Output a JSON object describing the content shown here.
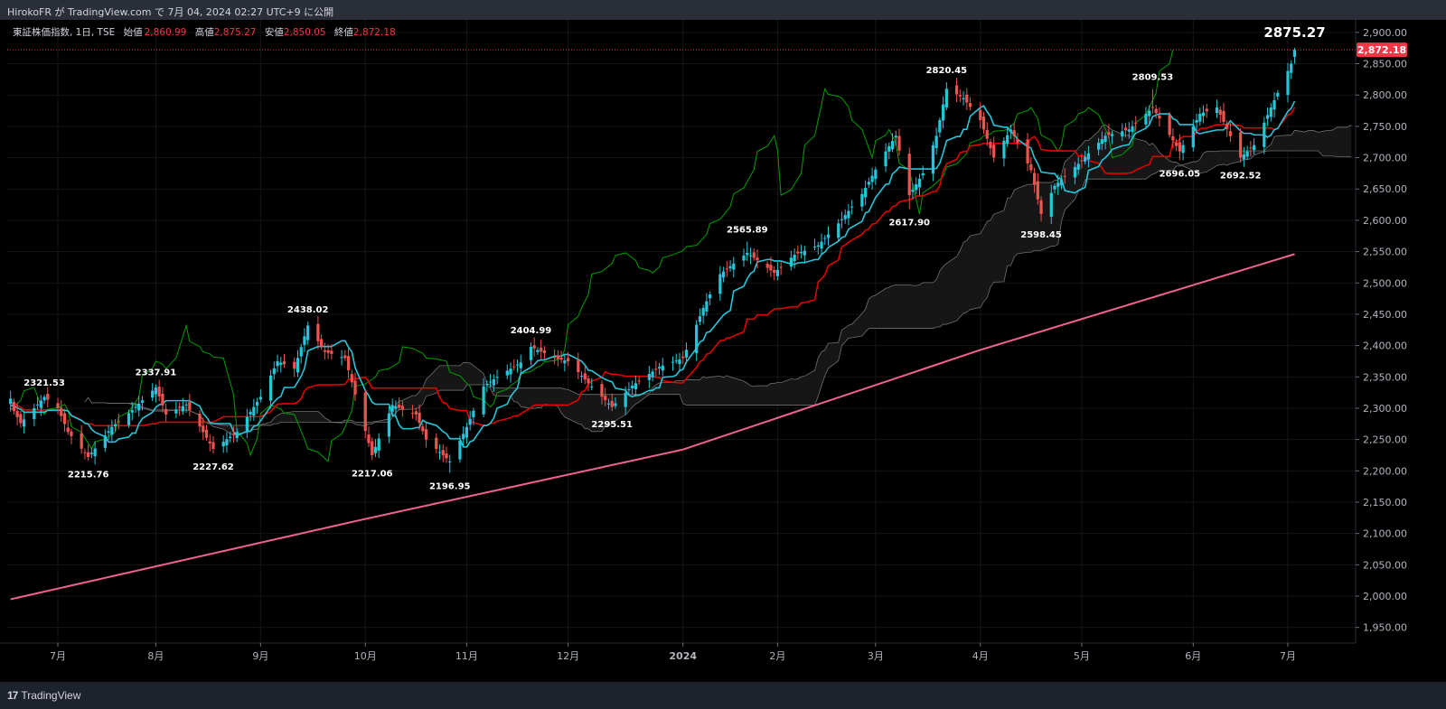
{
  "header": {
    "publish_text": "HirokoFR が TradingView.com で 7月 04, 2024 02:27 UTC+9 に公開"
  },
  "legend": {
    "symbol": "東証株価指数, 1日, TSE",
    "open_label": "始値",
    "open_value": "2,860.99",
    "high_label": "高値",
    "high_value": "2,875.27",
    "low_label": "安値",
    "low_value": "2,850.05",
    "close_label": "終値",
    "close_value": "2,872.18"
  },
  "footer": {
    "brand": "TradingView",
    "logo_mark": "17"
  },
  "colors": {
    "up": "#26c6da",
    "down": "#ef5350",
    "conversion": "#26c6da",
    "base": "#e00000",
    "lagging": "#00a000",
    "cloud": "#161616",
    "cloud_edge": "#707070",
    "sma": "#f06292",
    "price_label_bg": "#f23645",
    "background": "#000000"
  },
  "chart_data": {
    "type": "candlestick",
    "instrument": "東証株価指数",
    "interval": "1日",
    "exchange": "TSE",
    "ohlc_latest": {
      "open": 2860.99,
      "high": 2875.27,
      "low": 2850.05,
      "close": 2872.18
    },
    "current_price_label": "2,872.18",
    "peak_label": "2875.27",
    "y_axis": {
      "min": 1925,
      "max": 2920,
      "side": "right",
      "ticks": [
        "1,950.00",
        "2,000.00",
        "2,050.00",
        "2,100.00",
        "2,150.00",
        "2,200.00",
        "2,250.00",
        "2,300.00",
        "2,350.00",
        "2,400.00",
        "2,450.00",
        "2,500.00",
        "2,550.00",
        "2,600.00",
        "2,650.00",
        "2,700.00",
        "2,750.00",
        "2,800.00",
        "2,850.00",
        "2,900.00"
      ]
    },
    "x_axis": {
      "labels": [
        "7月",
        "8月",
        "9月",
        "10月",
        "11月",
        "12月",
        "2024",
        "2月",
        "3月",
        "4月",
        "5月",
        "6月",
        "7月"
      ],
      "label_dates": [
        "2023-07-03",
        "2023-08-01",
        "2023-09-01",
        "2023-10-02",
        "2023-11-01",
        "2023-12-01",
        "2024-01-04",
        "2024-02-01",
        "2024-03-01",
        "2024-04-01",
        "2024-05-01",
        "2024-06-03",
        "2024-07-01"
      ]
    },
    "grid": true,
    "swing_labels": [
      {
        "text": "2321.53",
        "date": "2023-06-29",
        "price": 2321.53,
        "position": "above"
      },
      {
        "text": "2215.76",
        "date": "2023-07-12",
        "price": 2215.76,
        "position": "below"
      },
      {
        "text": "2337.91",
        "date": "2023-08-01",
        "price": 2337.91,
        "position": "above"
      },
      {
        "text": "2227.62",
        "date": "2023-08-18",
        "price": 2227.62,
        "position": "below"
      },
      {
        "text": "2438.02",
        "date": "2023-09-15",
        "price": 2438.02,
        "position": "above"
      },
      {
        "text": "2217.06",
        "date": "2023-10-04",
        "price": 2217.06,
        "position": "below"
      },
      {
        "text": "2196.95",
        "date": "2023-10-27",
        "price": 2196.95,
        "position": "below"
      },
      {
        "text": "2404.99",
        "date": "2023-11-20",
        "price": 2404.99,
        "position": "above"
      },
      {
        "text": "2295.51",
        "date": "2023-12-14",
        "price": 2295.51,
        "position": "below"
      },
      {
        "text": "2565.89",
        "date": "2024-01-23",
        "price": 2565.89,
        "position": "above"
      },
      {
        "text": "2617.90",
        "date": "2024-03-11",
        "price": 2617.9,
        "position": "below"
      },
      {
        "text": "2820.45",
        "date": "2024-03-22",
        "price": 2820.45,
        "position": "above"
      },
      {
        "text": "2598.45",
        "date": "2024-04-19",
        "price": 2598.45,
        "position": "below"
      },
      {
        "text": "2809.53",
        "date": "2024-05-22",
        "price": 2809.53,
        "position": "above"
      },
      {
        "text": "2696.05",
        "date": "2024-05-30",
        "price": 2696.05,
        "position": "below"
      },
      {
        "text": "2692.52",
        "date": "2024-06-17",
        "price": 2692.52,
        "position": "below"
      }
    ],
    "anchors": [
      [
        "2023-06-19",
        2305
      ],
      [
        "2023-06-22",
        2276
      ],
      [
        "2023-06-29",
        2318
      ],
      [
        "2023-07-03",
        2300
      ],
      [
        "2023-07-06",
        2262
      ],
      [
        "2023-07-12",
        2222
      ],
      [
        "2023-07-19",
        2270
      ],
      [
        "2023-07-24",
        2292
      ],
      [
        "2023-08-01",
        2333
      ],
      [
        "2023-08-04",
        2290
      ],
      [
        "2023-08-10",
        2306
      ],
      [
        "2023-08-18",
        2235
      ],
      [
        "2023-08-25",
        2262
      ],
      [
        "2023-09-01",
        2318
      ],
      [
        "2023-09-06",
        2375
      ],
      [
        "2023-09-11",
        2363
      ],
      [
        "2023-09-15",
        2432
      ],
      [
        "2023-09-20",
        2390
      ],
      [
        "2023-09-26",
        2380
      ],
      [
        "2023-10-04",
        2225
      ],
      [
        "2023-10-10",
        2305
      ],
      [
        "2023-10-17",
        2290
      ],
      [
        "2023-10-20",
        2250
      ],
      [
        "2023-10-27",
        2215
      ],
      [
        "2023-11-01",
        2270
      ],
      [
        "2023-11-06",
        2335
      ],
      [
        "2023-11-10",
        2350
      ],
      [
        "2023-11-17",
        2373
      ],
      [
        "2023-11-20",
        2398
      ],
      [
        "2023-11-27",
        2380
      ],
      [
        "2023-12-01",
        2375
      ],
      [
        "2023-12-07",
        2340
      ],
      [
        "2023-12-14",
        2302
      ],
      [
        "2023-12-20",
        2336
      ],
      [
        "2023-12-28",
        2366
      ],
      [
        "2024-01-04",
        2380
      ],
      [
        "2024-01-10",
        2460
      ],
      [
        "2024-01-15",
        2514
      ],
      [
        "2024-01-23",
        2548
      ],
      [
        "2024-01-31",
        2516
      ],
      [
        "2024-02-06",
        2545
      ],
      [
        "2024-02-13",
        2560
      ],
      [
        "2024-02-19",
        2595
      ],
      [
        "2024-02-26",
        2642
      ],
      [
        "2024-03-04",
        2710
      ],
      [
        "2024-03-07",
        2735
      ],
      [
        "2024-03-11",
        2640
      ],
      [
        "2024-03-15",
        2675
      ],
      [
        "2024-03-19",
        2735
      ],
      [
        "2024-03-22",
        2810
      ],
      [
        "2024-03-27",
        2795
      ],
      [
        "2024-04-01",
        2760
      ],
      [
        "2024-04-05",
        2700
      ],
      [
        "2024-04-10",
        2745
      ],
      [
        "2024-04-16",
        2680
      ],
      [
        "2024-04-19",
        2610
      ],
      [
        "2024-04-23",
        2655
      ],
      [
        "2024-04-30",
        2690
      ],
      [
        "2024-05-08",
        2735
      ],
      [
        "2024-05-15",
        2745
      ],
      [
        "2024-05-22",
        2780
      ],
      [
        "2024-05-30",
        2710
      ],
      [
        "2024-06-05",
        2770
      ],
      [
        "2024-06-10",
        2780
      ],
      [
        "2024-06-17",
        2700
      ],
      [
        "2024-06-21",
        2720
      ],
      [
        "2024-06-26",
        2780
      ],
      [
        "2024-07-02",
        2850
      ],
      [
        "2024-07-03",
        2872.18
      ]
    ],
    "series": [
      {
        "name": "転換線",
        "kind": "ichimoku-conversion",
        "period": 9
      },
      {
        "name": "基準線",
        "kind": "ichimoku-base",
        "period": 26
      },
      {
        "name": "先行スパン",
        "kind": "ichimoku-cloud",
        "shift": 26
      },
      {
        "name": "遅行スパン",
        "kind": "ichimoku-lagging",
        "shift": -26
      },
      {
        "name": "SMA",
        "kind": "sma",
        "period": 200,
        "points": [
          [
            "2023-06-15",
            1990
          ],
          [
            "2023-10-01",
            2122
          ],
          [
            "2024-01-04",
            2234
          ],
          [
            "2024-04-01",
            2393
          ],
          [
            "2024-07-03",
            2546
          ]
        ]
      }
    ]
  }
}
